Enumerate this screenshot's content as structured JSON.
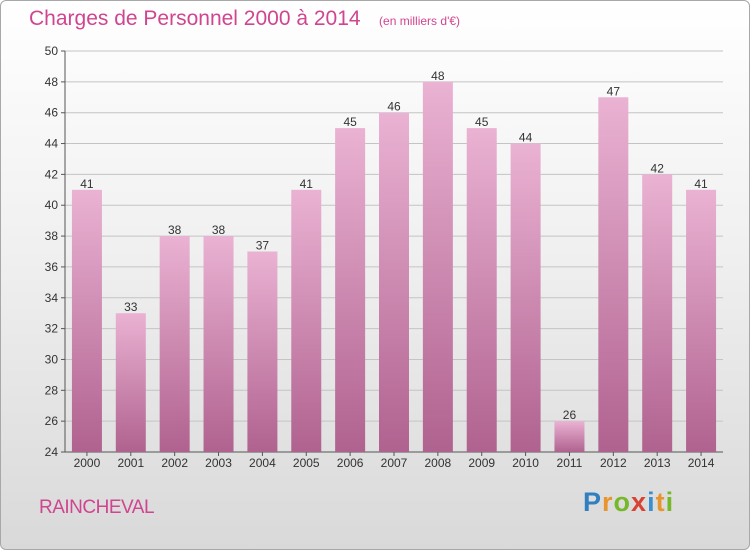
{
  "title": "Charges de Personnel 2000 à 2014",
  "unit": "(en milliers d'€)",
  "commune": "RAINCHEVAL",
  "brand": {
    "letters": [
      "P",
      "r",
      "o",
      "x",
      "i",
      "t",
      "i"
    ],
    "colors": [
      "#2f7fc1",
      "#e8952f",
      "#76b82a",
      "#d94131",
      "#3a8fd0",
      "#e8952f",
      "#76b82a"
    ]
  },
  "colors": {
    "accent": "#d0458f",
    "bar_top": "#eab2d3",
    "bar_bottom": "#b0628f"
  },
  "chart_data": {
    "type": "bar",
    "categories": [
      "2000",
      "2001",
      "2002",
      "2003",
      "2004",
      "2005",
      "2006",
      "2007",
      "2008",
      "2009",
      "2010",
      "2011",
      "2012",
      "2013",
      "2014"
    ],
    "values": [
      41,
      33,
      38,
      38,
      37,
      41,
      45,
      46,
      48,
      45,
      44,
      26,
      47,
      42,
      41
    ],
    "ylim": [
      24,
      50
    ],
    "yticks": [
      24,
      26,
      28,
      30,
      32,
      34,
      36,
      38,
      40,
      42,
      44,
      46,
      48,
      50
    ],
    "title": "Charges de Personnel 2000 à 2014",
    "xlabel": "",
    "ylabel": "",
    "grid": "horizontal",
    "data_labels": true
  }
}
